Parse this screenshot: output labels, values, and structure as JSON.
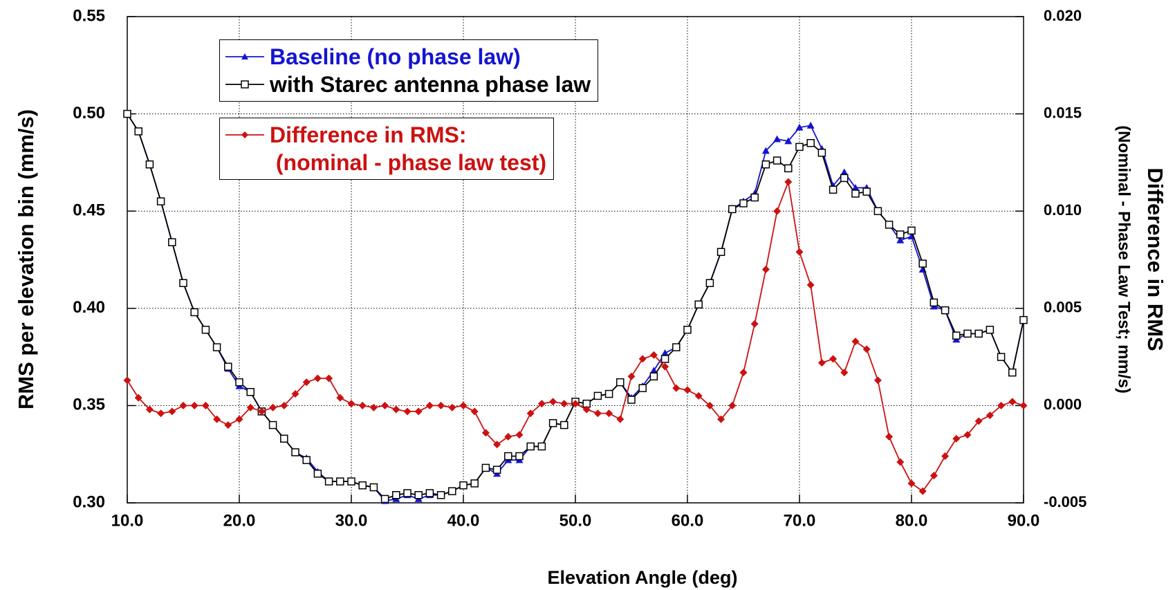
{
  "chart_data": {
    "type": "line",
    "xlabel": "Elevation Angle (deg)",
    "ylabel": "RMS per elevation bin (mm/s)",
    "y2label": "Difference in RMS",
    "y2label_sub": "(Nominal - Phase Law Test; mm/s)",
    "grid": true,
    "legend": "upper left",
    "x": [
      10,
      11,
      12,
      13,
      14,
      15,
      16,
      17,
      18,
      19,
      20,
      21,
      22,
      23,
      24,
      25,
      26,
      27,
      28,
      29,
      30,
      31,
      32,
      33,
      34,
      35,
      36,
      37,
      38,
      39,
      40,
      41,
      42,
      43,
      44,
      45,
      46,
      47,
      48,
      49,
      50,
      51,
      52,
      53,
      54,
      55,
      56,
      57,
      58,
      59,
      60,
      61,
      62,
      63,
      64,
      65,
      66,
      67,
      68,
      69,
      70,
      71,
      72,
      73,
      74,
      75,
      76,
      77,
      78,
      79,
      80,
      81,
      82,
      83,
      84,
      85,
      86,
      87,
      88,
      89,
      90
    ],
    "xlim": [
      10,
      90
    ],
    "xticks": [
      {
        "value": 10,
        "label": "10.0"
      },
      {
        "value": 20,
        "label": "20.0"
      },
      {
        "value": 30,
        "label": "30.0"
      },
      {
        "value": 40,
        "label": "40.0"
      },
      {
        "value": 50,
        "label": "50.0"
      },
      {
        "value": 60,
        "label": "60.0"
      },
      {
        "value": 70,
        "label": "70.0"
      },
      {
        "value": 80,
        "label": "80.0"
      },
      {
        "value": 90,
        "label": "90.0"
      }
    ],
    "ylim": [
      0.3,
      0.55
    ],
    "yticks": [
      {
        "value": 0.3,
        "label": "0.30"
      },
      0.35,
      {
        "value": 0.4,
        "label": "0.40"
      },
      0.45,
      {
        "value": 0.5,
        "label": "0.50"
      },
      0.55
    ],
    "y2lim": [
      -0.005,
      0.02
    ],
    "y2ticks": [
      -0.005,
      {
        "value": 0,
        "label": "0.000"
      },
      0.005,
      {
        "value": 0.01,
        "label": "0.010"
      },
      0.015,
      {
        "value": 0.02,
        "label": "0.020"
      }
    ],
    "series": [
      {
        "name": "Baseline (no phase law)",
        "color": "#1414d2",
        "marker": "triangle",
        "axis": "y",
        "values": [
          0.5,
          0.491,
          0.474,
          0.455,
          0.434,
          0.413,
          0.398,
          0.389,
          0.38,
          0.369,
          0.36,
          0.357,
          0.347,
          0.34,
          0.333,
          0.326,
          0.323,
          0.316,
          0.311,
          0.311,
          0.311,
          0.309,
          0.308,
          0.301,
          0.302,
          0.304,
          0.302,
          0.304,
          0.304,
          0.306,
          0.309,
          0.31,
          0.318,
          0.315,
          0.322,
          0.322,
          0.329,
          0.329,
          0.341,
          0.34,
          0.352,
          0.351,
          0.355,
          0.356,
          0.362,
          0.354,
          0.36,
          0.368,
          0.377,
          0.38,
          0.389,
          0.402,
          0.413,
          0.429,
          0.451,
          0.455,
          0.459,
          0.481,
          0.487,
          0.486,
          0.493,
          0.494,
          0.482,
          0.463,
          0.47,
          0.462,
          0.462,
          0.45,
          0.443,
          0.435,
          0.437,
          0.42,
          0.401,
          0.399,
          0.384,
          0.387,
          0.387,
          0.389,
          0.375,
          0.367,
          0.394
        ]
      },
      {
        "name": "with Starec antenna phase law",
        "color": "#000000",
        "marker": "square",
        "axis": "y",
        "values": [
          0.5,
          0.491,
          0.474,
          0.455,
          0.434,
          0.413,
          0.398,
          0.389,
          0.38,
          0.37,
          0.362,
          0.357,
          0.347,
          0.34,
          0.333,
          0.326,
          0.322,
          0.315,
          0.311,
          0.311,
          0.311,
          0.309,
          0.308,
          0.302,
          0.304,
          0.305,
          0.304,
          0.305,
          0.304,
          0.306,
          0.309,
          0.31,
          0.318,
          0.317,
          0.324,
          0.324,
          0.329,
          0.329,
          0.341,
          0.34,
          0.352,
          0.351,
          0.355,
          0.356,
          0.362,
          0.353,
          0.359,
          0.365,
          0.374,
          0.38,
          0.389,
          0.402,
          0.413,
          0.429,
          0.451,
          0.454,
          0.457,
          0.474,
          0.476,
          0.472,
          0.483,
          0.485,
          0.48,
          0.461,
          0.467,
          0.459,
          0.46,
          0.45,
          0.443,
          0.438,
          0.44,
          0.423,
          0.403,
          0.399,
          0.386,
          0.387,
          0.387,
          0.389,
          0.375,
          0.367,
          0.394
        ]
      },
      {
        "name": "Difference in RMS:\n (nominal - phase law test)",
        "color": "#cc1111",
        "marker": "diamond",
        "axis": "y2",
        "values": [
          0.0013,
          0.0004,
          -0.0002,
          -0.0004,
          -0.0003,
          0.0,
          0.0,
          0.0,
          -0.0007,
          -0.001,
          -0.0007,
          -0.0001,
          -0.0003,
          -0.0001,
          0.0,
          0.0006,
          0.0012,
          0.0014,
          0.0014,
          0.0004,
          0.0001,
          0.0,
          -0.0001,
          0.0,
          -0.0002,
          -0.0003,
          -0.0003,
          0.0,
          0.0,
          -0.0001,
          0.0,
          -0.0003,
          -0.0014,
          -0.002,
          -0.0016,
          -0.0015,
          -0.0004,
          0.0001,
          0.0002,
          0.0001,
          0.0001,
          -0.0002,
          -0.0004,
          -0.0004,
          -0.0007,
          0.0015,
          0.0024,
          0.0026,
          0.002,
          0.0009,
          0.0008,
          0.0005,
          0.0,
          -0.0007,
          0.0,
          0.0017,
          0.0042,
          0.007,
          0.01,
          0.0115,
          0.0079,
          0.0062,
          0.0022,
          0.0024,
          0.0017,
          0.0033,
          0.0029,
          0.0013,
          -0.0016,
          -0.0029,
          -0.004,
          -0.0044,
          -0.0036,
          -0.0026,
          -0.0017,
          -0.0015,
          -0.0008,
          -0.0005,
          0.0,
          0.0002,
          0.0
        ]
      }
    ]
  }
}
